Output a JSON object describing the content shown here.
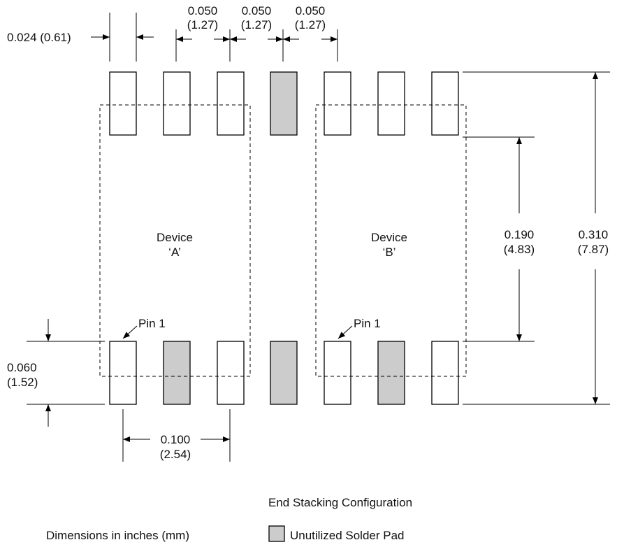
{
  "dimensions": {
    "pad_width": "0.024 (0.61)",
    "pitch_1_in": "0.050",
    "pitch_1_mm": "(1.27)",
    "pitch_2_in": "0.050",
    "pitch_2_mm": "(1.27)",
    "pitch_3_in": "0.050",
    "pitch_3_mm": "(1.27)",
    "pad_length_in": "0.060",
    "pad_length_mm": "(1.52)",
    "pad_span_in": "0.100",
    "pad_span_mm": "(2.54)",
    "inner_height_in": "0.190",
    "inner_height_mm": "(4.83)",
    "outer_height_in": "0.310",
    "outer_height_mm": "(7.87)"
  },
  "devices": {
    "a_line1": "Device",
    "a_line2": "‘A’",
    "b_line1": "Device",
    "b_line2": "‘B’"
  },
  "pin_labels": {
    "a": "Pin 1",
    "b": "Pin 1"
  },
  "caption": {
    "title": "End Stacking Configuration",
    "units_note": "Dimensions in inches (mm)",
    "legend_label": "Unutilized Solder Pad"
  },
  "colors": {
    "unutilized_pad": "#cccccc",
    "utilized_pad": "#ffffff"
  },
  "pads": {
    "top": [
      false,
      false,
      false,
      true,
      false,
      false,
      false
    ],
    "bottom": [
      false,
      true,
      false,
      true,
      false,
      true,
      false
    ]
  }
}
